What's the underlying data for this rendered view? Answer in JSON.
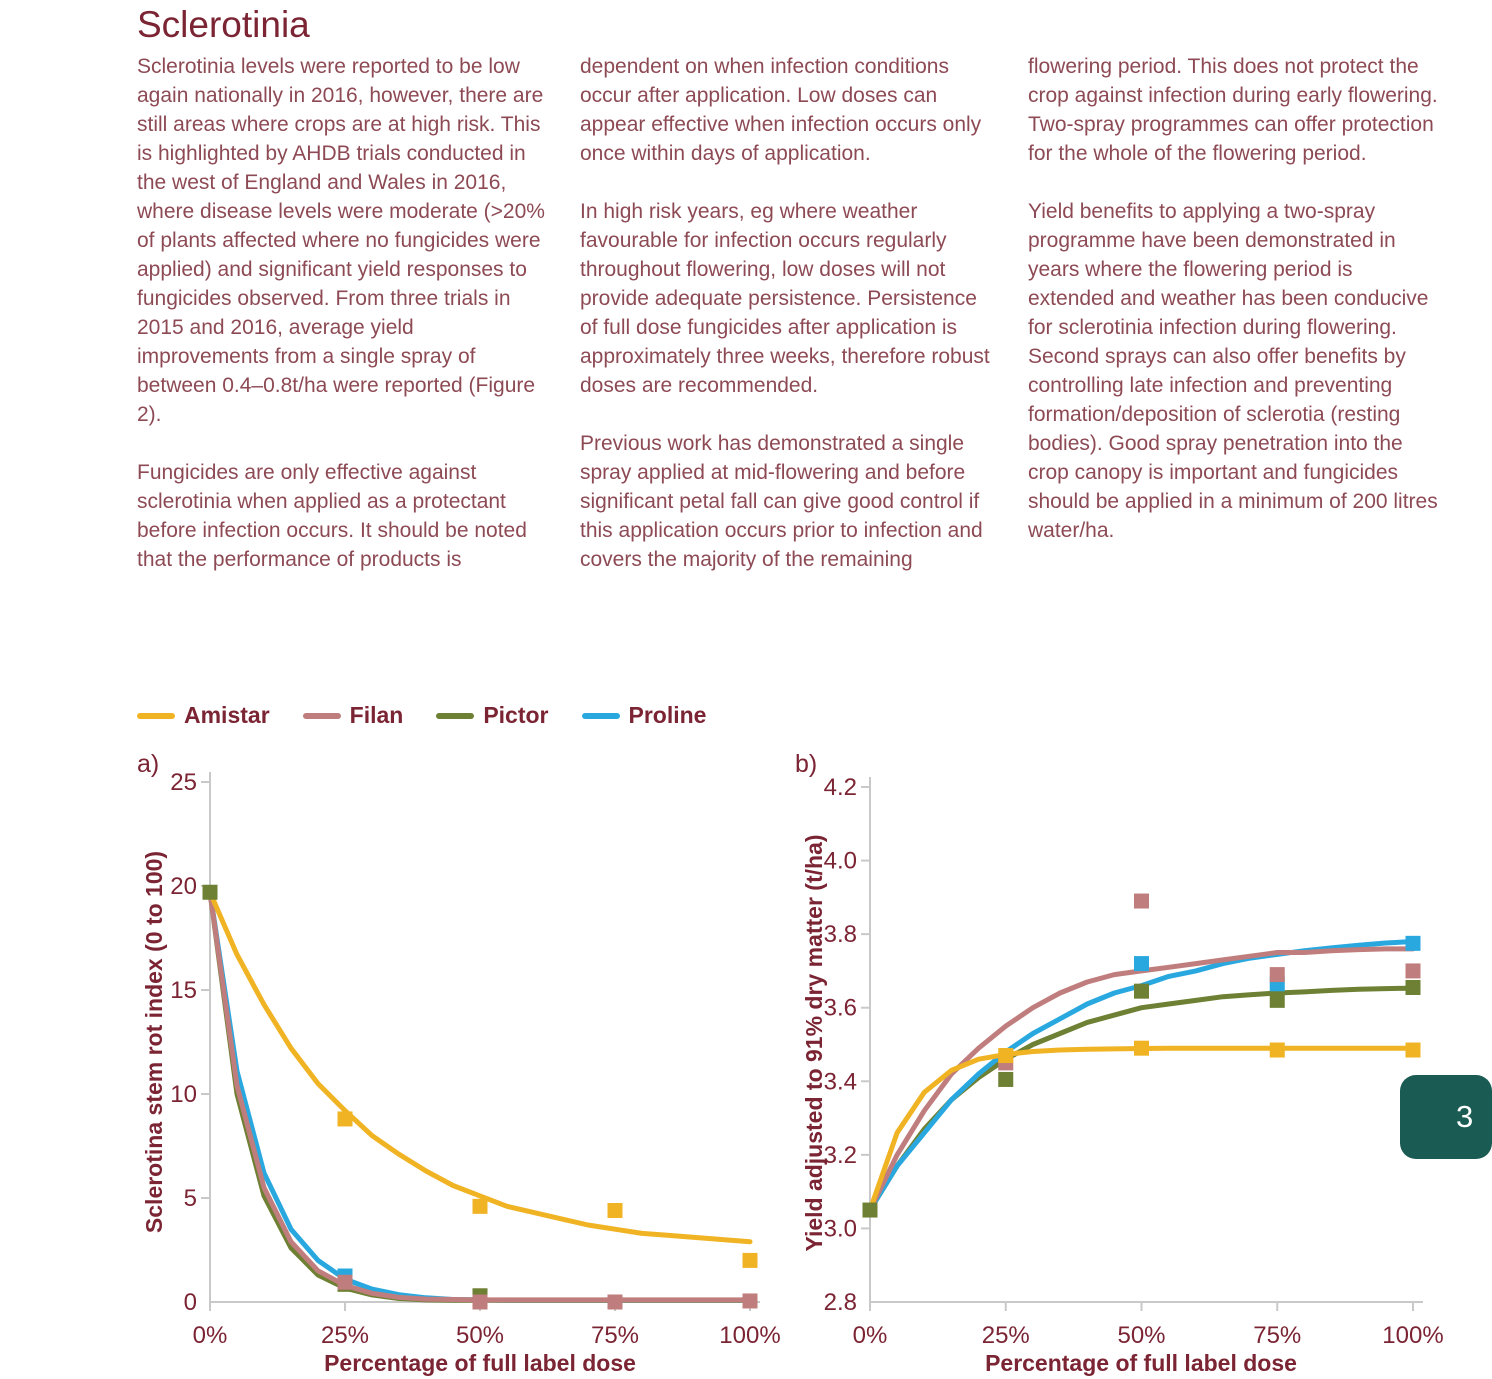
{
  "page": {
    "title": "Sclerotinia",
    "page_tab": "3"
  },
  "columns": [
    {
      "paragraphs": [
        "Sclerotinia levels were reported to be low again nationally in 2016, however, there are still areas where crops are at high risk. This is highlighted by AHDB trials conducted in the west of England and Wales in 2016, where disease levels were moderate (>20% of plants affected where no fungicides were applied) and significant yield responses to fungicides observed. From three trials in 2015 and 2016, average yield improvements from a single spray of between 0.4–0.8t/ha were reported (Figure 2).",
        "Fungicides are only effective against sclerotinia when applied as a protectant before infection occurs. It should be noted that the performance of products is"
      ]
    },
    {
      "paragraphs": [
        "dependent on when infection conditions occur after application. Low doses can appear effective when infection occurs only once within days of application.",
        "In high risk years, eg where weather favourable for infection occurs regularly throughout flowering, low doses will not provide adequate persistence. Persistence of full dose fungicides after application is approximately three weeks, therefore robust doses are recommended.",
        "Previous work has demonstrated a single spray applied at mid-flowering and before significant petal fall can give good control if this application occurs prior to infection and covers the majority of the remaining"
      ]
    },
    {
      "paragraphs": [
        "flowering period. This does not protect the crop against infection during early flowering. Two-spray programmes can offer protection for the whole of the flowering period.",
        "Yield benefits to applying a two-spray programme have been demonstrated in years where the flowering period is extended and weather has been conducive for sclerotinia infection during flowering. Second sprays can also offer benefits by controlling late infection and preventing formation/deposition of sclerotia (resting bodies). Good spray penetration into the crop canopy is important and fungicides should be applied in a minimum of 200 litres water/ha."
      ]
    }
  ],
  "legend": {
    "items": [
      {
        "label": "Amistar",
        "color": "#f0b323"
      },
      {
        "label": "Filan",
        "color": "#c07d7d"
      },
      {
        "label": "Pictor",
        "color": "#6e8033"
      },
      {
        "label": "Proline",
        "color": "#29a8e0"
      }
    ]
  },
  "colors": {
    "maroon_heading": "#7b2433",
    "maroon_body": "#8d4a54",
    "axis_gray": "#c9c9c9",
    "tab_teal": "#1a5b53"
  },
  "chart_data": [
    {
      "type": "line",
      "panel_label": "a)",
      "xlabel": "Percentage of full label dose",
      "ylabel": "Sclerotina stem rot index (0 to 100)",
      "xlim": [
        0,
        100
      ],
      "ylim": [
        0,
        25
      ],
      "xticks": [
        0,
        25,
        50,
        75,
        100
      ],
      "xtick_labels": [
        "0%",
        "25%",
        "50%",
        "75%",
        "100%"
      ],
      "yticks": [
        0,
        5,
        10,
        15,
        20,
        25
      ],
      "ytick_labels": [
        "0",
        "5",
        "10",
        "15",
        "20",
        "25"
      ],
      "grid": false,
      "legend_position": "top",
      "curve_x": [
        0,
        5,
        10,
        15,
        20,
        25,
        30,
        35,
        40,
        45,
        50,
        55,
        60,
        65,
        70,
        75,
        80,
        85,
        90,
        95,
        100
      ],
      "series": [
        {
          "name": "Proline",
          "color": "#29a8e0",
          "curve_y": [
            19.7,
            11.1,
            6.2,
            3.5,
            2.0,
            1.1,
            0.62,
            0.35,
            0.2,
            0.12,
            0.1,
            0.08,
            0.08,
            0.08,
            0.08,
            0.08,
            0.08,
            0.08,
            0.08,
            0.08,
            0.08
          ],
          "markers": [
            [
              25,
              1.25
            ]
          ]
        },
        {
          "name": "Pictor",
          "color": "#6e8033",
          "curve_y": [
            19.7,
            10.0,
            5.1,
            2.6,
            1.3,
            0.67,
            0.34,
            0.17,
            0.1,
            0.08,
            0.08,
            0.08,
            0.08,
            0.08,
            0.08,
            0.08,
            0.08,
            0.08,
            0.08,
            0.08,
            0.08
          ],
          "markers": [
            [
              0,
              19.7
            ],
            [
              25,
              0.85
            ],
            [
              50,
              0.3
            ]
          ]
        },
        {
          "name": "Filan",
          "color": "#c07d7d",
          "curve_y": [
            19.7,
            10.4,
            5.5,
            2.9,
            1.5,
            0.8,
            0.42,
            0.22,
            0.14,
            0.12,
            0.1,
            0.1,
            0.1,
            0.1,
            0.1,
            0.1,
            0.1,
            0.1,
            0.1,
            0.1,
            0.1
          ],
          "markers": [
            [
              25,
              0.95
            ],
            [
              50,
              0.0
            ],
            [
              75,
              0.0
            ],
            [
              100,
              0.05
            ]
          ]
        },
        {
          "name": "Amistar",
          "color": "#f0b323",
          "curve_y": [
            19.7,
            16.7,
            14.3,
            12.2,
            10.5,
            9.2,
            8.0,
            7.1,
            6.3,
            5.6,
            5.1,
            4.6,
            4.3,
            4.0,
            3.7,
            3.5,
            3.3,
            3.2,
            3.1,
            3.0,
            2.9
          ],
          "markers": [
            [
              25,
              8.8
            ],
            [
              50,
              4.6
            ],
            [
              75,
              4.4
            ],
            [
              100,
              2.0
            ]
          ]
        }
      ]
    },
    {
      "type": "line",
      "panel_label": "b)",
      "xlabel": "Percentage of full label dose",
      "ylabel": "Yield adjusted to 91% dry matter (t/ha)",
      "xlim": [
        0,
        100
      ],
      "ylim": [
        2.8,
        4.2
      ],
      "xticks": [
        0,
        25,
        50,
        75,
        100
      ],
      "xtick_labels": [
        "0%",
        "25%",
        "50%",
        "75%",
        "100%"
      ],
      "yticks": [
        2.8,
        3.0,
        3.2,
        3.4,
        3.6,
        3.8,
        4.0,
        4.2
      ],
      "ytick_labels": [
        "2.8",
        "3.0",
        "3.2",
        "3.4",
        "3.6",
        "3.8",
        "4.0",
        "4.2"
      ],
      "grid": false,
      "legend_position": "top",
      "curve_x": [
        0,
        5,
        10,
        15,
        20,
        25,
        30,
        35,
        40,
        45,
        50,
        55,
        60,
        65,
        70,
        75,
        80,
        85,
        90,
        95,
        100
      ],
      "series": [
        {
          "name": "Pictor",
          "color": "#6e8033",
          "curve_y": [
            3.05,
            3.17,
            3.27,
            3.35,
            3.41,
            3.46,
            3.5,
            3.53,
            3.56,
            3.58,
            3.6,
            3.61,
            3.62,
            3.63,
            3.635,
            3.64,
            3.643,
            3.647,
            3.65,
            3.652,
            3.653
          ],
          "markers": [
            [
              0,
              3.05
            ],
            [
              25,
              3.405
            ],
            [
              50,
              3.645
            ],
            [
              75,
              3.62
            ],
            [
              100,
              3.655
            ]
          ]
        },
        {
          "name": "Proline",
          "color": "#29a8e0",
          "curve_y": [
            3.05,
            3.17,
            3.26,
            3.35,
            3.42,
            3.48,
            3.53,
            3.57,
            3.61,
            3.64,
            3.66,
            3.685,
            3.7,
            3.72,
            3.735,
            3.745,
            3.755,
            3.763,
            3.77,
            3.776,
            3.78
          ],
          "markers": [
            [
              50,
              3.72
            ],
            [
              75,
              3.665
            ],
            [
              100,
              3.775
            ]
          ]
        },
        {
          "name": "Filan",
          "color": "#c07d7d",
          "curve_y": [
            3.05,
            3.2,
            3.32,
            3.42,
            3.49,
            3.55,
            3.6,
            3.64,
            3.67,
            3.69,
            3.7,
            3.71,
            3.72,
            3.73,
            3.74,
            3.75,
            3.75,
            3.755,
            3.758,
            3.76,
            3.76
          ],
          "markers": [
            [
              25,
              3.45
            ],
            [
              50,
              3.89
            ],
            [
              75,
              3.69
            ],
            [
              100,
              3.7
            ]
          ]
        },
        {
          "name": "Amistar",
          "color": "#f0b323",
          "curve_y": [
            3.05,
            3.26,
            3.37,
            3.43,
            3.46,
            3.473,
            3.481,
            3.485,
            3.487,
            3.488,
            3.489,
            3.49,
            3.49,
            3.49,
            3.49,
            3.49,
            3.49,
            3.49,
            3.49,
            3.49,
            3.49
          ],
          "markers": [
            [
              25,
              3.47
            ],
            [
              50,
              3.49
            ],
            [
              75,
              3.485
            ],
            [
              100,
              3.485
            ]
          ]
        }
      ]
    }
  ]
}
